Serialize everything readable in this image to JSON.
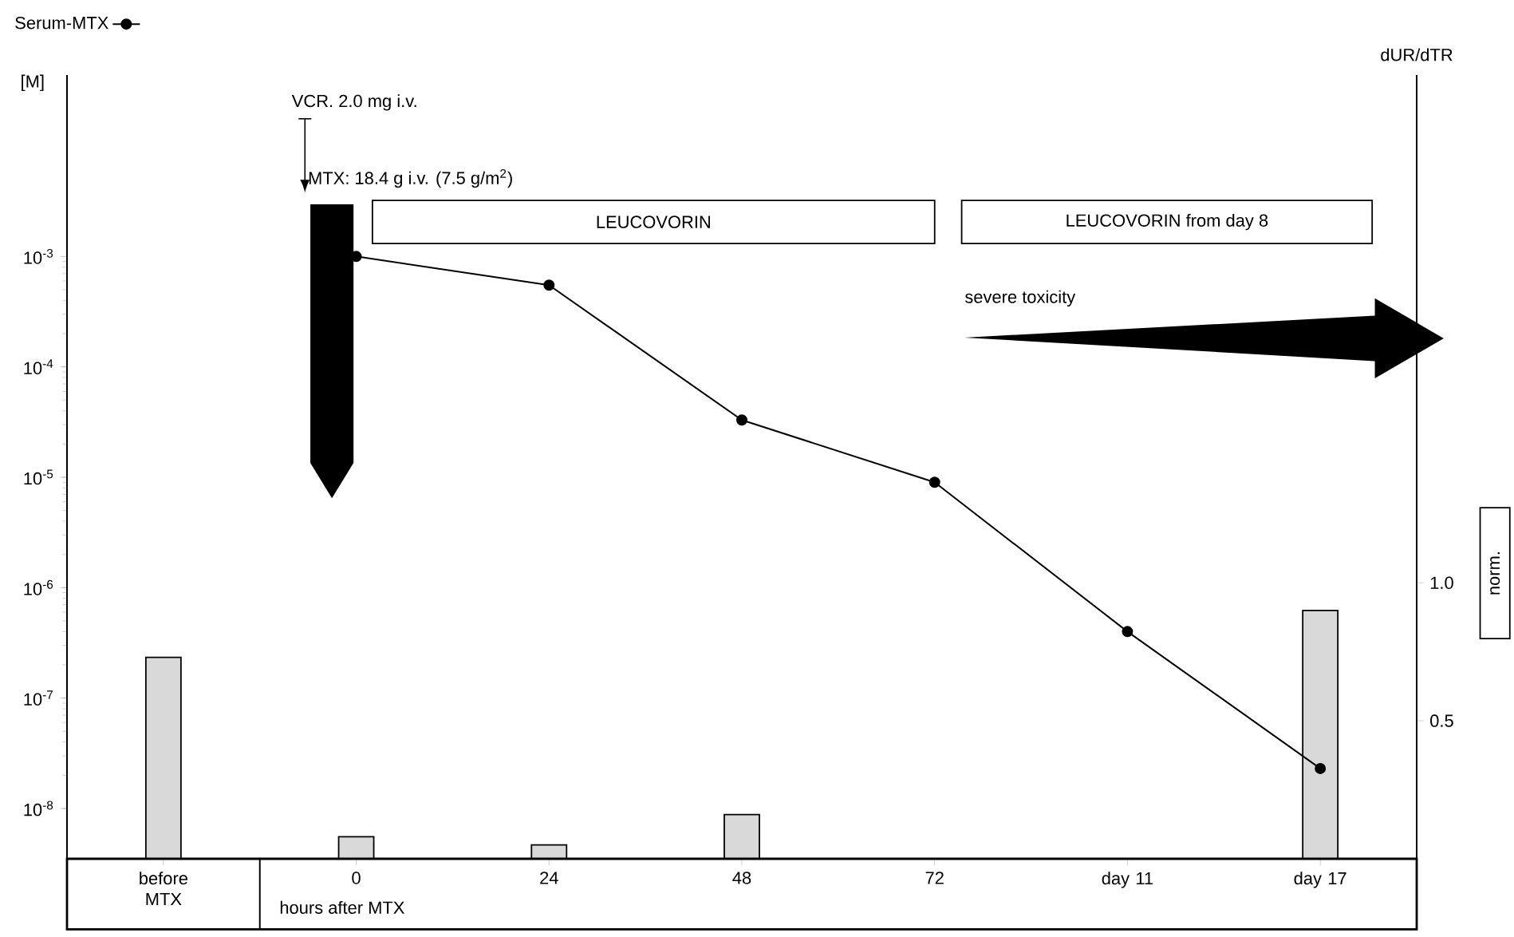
{
  "chart_data": {
    "type": "line",
    "categories": [
      "before MTX",
      "0",
      "24",
      "48",
      "72",
      "day 11",
      "day 17"
    ],
    "xlabel": "hours after MTX",
    "ylabel": "[M]",
    "y2label": "dUR/dTR",
    "log": "y",
    "ylim": [
      3.5e-09,
      0.044
    ],
    "yticks": [
      {
        "value": 1e-08,
        "label": "10$^{-8}$"
      },
      {
        "value": 1e-07,
        "label": "10$^{-7}$"
      },
      {
        "value": 1e-06,
        "label": "10$^{-6}$"
      },
      {
        "value": 1e-05,
        "label": "10$^{-5}$"
      },
      {
        "value": 0.0001,
        "label": "10$^{-4}$"
      },
      {
        "value": 0.001,
        "label": "10$^{-3}$"
      }
    ],
    "y2lim": [
      0,
      2.84
    ],
    "y2ticks": [
      0.5,
      {
        "value": 1,
        "label": "1.0"
      }
    ],
    "series": [
      {
        "type": "bar",
        "axis": "y2",
        "color": "#d9d9d9",
        "values": [
          0.73,
          0.08,
          0.05,
          0.16,
          null,
          null,
          0.9
        ]
      },
      {
        "name": "Serum-MTX",
        "color": "#000000",
        "values": [
          null,
          0.001,
          0.00055,
          3.3e-05,
          9e-06,
          4e-07,
          2.3e-08
        ]
      }
    ],
    "marker": "circle",
    "legend": "top left",
    "annotations": [
      "VCR. 2.0 mg i.v.",
      "MTX: 18.4 g i.v. (7.5 g/m$^{2}$)",
      "LEUCOVORIN",
      "LEUCOVORIN from day 8",
      "severe toxicity",
      "norm."
    ]
  }
}
